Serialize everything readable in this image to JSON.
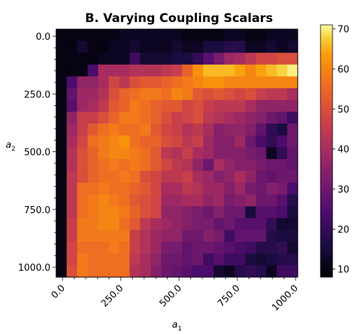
{
  "chart_data": {
    "type": "heatmap",
    "title": "B. Varying Coupling Scalars",
    "xlabel": "a",
    "xlabel_sub": "1",
    "ylabel": "a",
    "ylabel_sub": "2",
    "x_range": [
      0,
      1000
    ],
    "y_range": [
      0,
      1000
    ],
    "y_inverted": true,
    "x_ticks": [
      0,
      250,
      500,
      750,
      1000
    ],
    "x_tick_labels": [
      "0.0",
      "250.0",
      "500.0",
      "750.0",
      "1000.0"
    ],
    "y_ticks": [
      0,
      250,
      500,
      750,
      1000
    ],
    "y_tick_labels": [
      "0.0",
      "250.0",
      "500.0",
      "750.0",
      "1000.0"
    ],
    "colormap": "inferno",
    "colorbar": {
      "min": 8,
      "max": 71,
      "ticks": [
        10,
        20,
        30,
        40,
        50,
        60,
        70
      ],
      "tick_labels": [
        "10",
        "20",
        "30",
        "40",
        "50",
        "60",
        "70"
      ],
      "label": "",
      "placement": "right"
    },
    "grid": false,
    "cells": [
      [
        10,
        10,
        10,
        10,
        10,
        10,
        12,
        12,
        12,
        12,
        12,
        12,
        10,
        10,
        10,
        10,
        12,
        12,
        10,
        10,
        12,
        12,
        12
      ],
      [
        10,
        10,
        14,
        10,
        10,
        12,
        12,
        14,
        12,
        12,
        12,
        14,
        12,
        12,
        16,
        16,
        18,
        18,
        12,
        12,
        14,
        12,
        14
      ],
      [
        10,
        10,
        10,
        10,
        12,
        12,
        12,
        22,
        14,
        14,
        14,
        16,
        16,
        20,
        26,
        32,
        38,
        40,
        44,
        48,
        48,
        50,
        50
      ],
      [
        10,
        10,
        10,
        24,
        40,
        40,
        40,
        42,
        42,
        42,
        44,
        46,
        54,
        62,
        66,
        66,
        66,
        64,
        60,
        64,
        66,
        68,
        70
      ],
      [
        10,
        24,
        36,
        36,
        40,
        48,
        44,
        50,
        52,
        52,
        54,
        56,
        58,
        60,
        62,
        62,
        60,
        60,
        60,
        60,
        60,
        60,
        60
      ],
      [
        10,
        28,
        38,
        38,
        42,
        50,
        54,
        56,
        58,
        58,
        56,
        60,
        58,
        52,
        50,
        52,
        50,
        48,
        50,
        46,
        44,
        44,
        40
      ],
      [
        10,
        26,
        38,
        40,
        44,
        52,
        54,
        58,
        56,
        54,
        52,
        52,
        48,
        50,
        46,
        44,
        44,
        44,
        40,
        36,
        36,
        36,
        36
      ],
      [
        10,
        36,
        46,
        46,
        50,
        54,
        58,
        58,
        56,
        54,
        50,
        46,
        48,
        50,
        44,
        42,
        40,
        38,
        36,
        34,
        30,
        28,
        22
      ],
      [
        10,
        38,
        46,
        52,
        56,
        58,
        56,
        56,
        58,
        52,
        48,
        46,
        42,
        44,
        40,
        34,
        36,
        36,
        34,
        28,
        20,
        16,
        30
      ],
      [
        10,
        40,
        48,
        56,
        58,
        60,
        62,
        56,
        54,
        54,
        50,
        48,
        44,
        46,
        38,
        34,
        34,
        38,
        30,
        24,
        20,
        24,
        30
      ],
      [
        10,
        42,
        50,
        54,
        58,
        60,
        60,
        58,
        56,
        52,
        44,
        42,
        46,
        40,
        38,
        34,
        34,
        34,
        32,
        30,
        12,
        20,
        28
      ],
      [
        10,
        42,
        50,
        54,
        56,
        58,
        56,
        58,
        56,
        52,
        48,
        44,
        42,
        36,
        30,
        40,
        36,
        34,
        34,
        32,
        30,
        30,
        28
      ],
      [
        10,
        44,
        50,
        54,
        56,
        56,
        58,
        56,
        50,
        48,
        44,
        44,
        46,
        40,
        38,
        34,
        36,
        40,
        36,
        30,
        28,
        30,
        30
      ],
      [
        10,
        44,
        56,
        56,
        58,
        56,
        56,
        54,
        52,
        48,
        40,
        40,
        44,
        42,
        38,
        38,
        34,
        38,
        32,
        30,
        34,
        32,
        24
      ],
      [
        10,
        44,
        56,
        58,
        60,
        58,
        56,
        52,
        50,
        48,
        38,
        38,
        40,
        40,
        36,
        38,
        32,
        34,
        36,
        30,
        30,
        26,
        18
      ],
      [
        10,
        44,
        56,
        58,
        60,
        60,
        58,
        54,
        50,
        48,
        36,
        36,
        34,
        32,
        30,
        34,
        30,
        30,
        16,
        26,
        26,
        24,
        16
      ],
      [
        10,
        46,
        58,
        58,
        60,
        60,
        56,
        52,
        44,
        40,
        38,
        36,
        34,
        32,
        32,
        28,
        30,
        26,
        26,
        26,
        20,
        14,
        14
      ],
      [
        10,
        46,
        58,
        58,
        58,
        58,
        58,
        46,
        42,
        38,
        36,
        36,
        30,
        30,
        34,
        32,
        22,
        28,
        28,
        28,
        18,
        16,
        16
      ],
      [
        10,
        48,
        56,
        56,
        56,
        58,
        56,
        46,
        42,
        38,
        32,
        32,
        28,
        30,
        30,
        28,
        26,
        24,
        22,
        18,
        18,
        20,
        14
      ],
      [
        10,
        48,
        58,
        56,
        56,
        56,
        56,
        44,
        40,
        36,
        30,
        30,
        28,
        30,
        22,
        26,
        22,
        22,
        16,
        14,
        16,
        18,
        18
      ],
      [
        10,
        50,
        58,
        56,
        56,
        56,
        56,
        42,
        40,
        34,
        30,
        28,
        26,
        24,
        24,
        14,
        12,
        18,
        20,
        18,
        12,
        22,
        22
      ]
    ]
  }
}
